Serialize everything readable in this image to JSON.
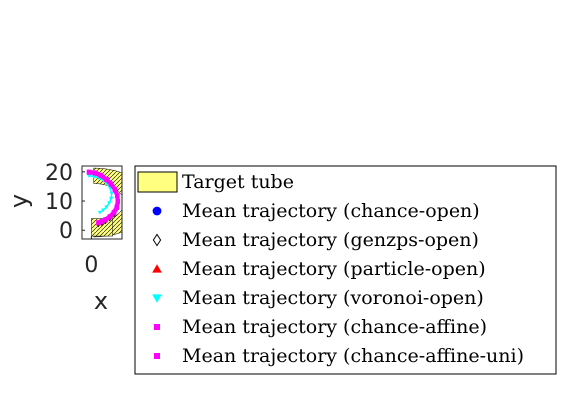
{
  "chart_data": {
    "type": "line",
    "title": "",
    "xlabel": "x",
    "ylabel": "y",
    "xlim": [
      -2,
      6.5
    ],
    "ylim": [
      -3,
      22
    ],
    "xticks": [
      0
    ],
    "yticks": [
      0,
      10,
      20
    ],
    "grid": false,
    "legend_placement": "right",
    "colors": {
      "target": "#ffff80",
      "chance_open": "#0000ff",
      "genzps_open": "#000000",
      "particle_open": "#ff0000",
      "voronoi_open": "#00ffff",
      "chance_affine": "#ff00ff",
      "chance_affine_uni": "#ff00ff"
    },
    "target_tube": {
      "name": "Target tube",
      "outer_radius": 11.8,
      "inner_radius": 6.5,
      "center": [
        0.5,
        9.5
      ],
      "bottom_box": {
        "x": [
          0,
          4.5
        ],
        "y": [
          -2,
          4
        ]
      }
    },
    "series": [
      {
        "name": "Mean trajectory (chance-open)",
        "marker": "circle",
        "color": "#0000ff",
        "x": [
          -0.5,
          0.8,
          2.0,
          3.2,
          4.2,
          5.0,
          5.5,
          5.6,
          5.4,
          4.8,
          3.9,
          3.0,
          2.2,
          1.5
        ],
        "y": [
          19.5,
          19.2,
          18.4,
          17.0,
          15.4,
          13.5,
          11.5,
          9.5,
          7.5,
          5.7,
          4.2,
          3.2,
          2.6,
          2.2
        ]
      },
      {
        "name": "Mean trajectory (genzps-open)",
        "marker": "diamond",
        "color": "#000000",
        "x": [
          -0.5,
          0.8,
          2.0,
          3.2,
          4.2,
          5.0,
          5.5,
          5.6,
          5.4,
          4.8,
          3.9,
          3.0,
          2.2,
          1.5
        ],
        "y": [
          19.5,
          19.2,
          18.4,
          17.0,
          15.4,
          13.5,
          11.5,
          9.5,
          7.5,
          5.7,
          4.2,
          3.2,
          2.6,
          2.2
        ]
      },
      {
        "name": "Mean trajectory (particle-open)",
        "marker": "triangle-up",
        "color": "#ff0000",
        "x": [
          -0.5,
          0.8,
          2.0,
          3.2,
          4.2,
          5.0,
          5.5,
          5.6,
          5.4,
          4.8,
          3.9,
          3.0,
          2.2,
          1.5
        ],
        "y": [
          19.5,
          19.2,
          18.4,
          17.0,
          15.4,
          13.5,
          11.5,
          9.5,
          7.5,
          5.7,
          4.2,
          3.2,
          2.6,
          2.2
        ]
      },
      {
        "name": "Mean trajectory (voronoi-open)",
        "marker": "triangle-down",
        "color": "#00ffff",
        "x": [
          -0.5,
          0.6,
          1.6,
          2.6,
          3.4,
          4.0,
          4.3,
          4.2,
          3.8,
          3.2,
          2.5,
          1.8
        ],
        "y": [
          18.6,
          18.4,
          17.9,
          17.0,
          15.8,
          14.3,
          12.6,
          10.9,
          9.4,
          8.0,
          6.9,
          6.1
        ]
      },
      {
        "name": "Mean trajectory (chance-affine)",
        "marker": "square",
        "color": "#ff00ff",
        "x": [
          -0.5,
          0.8,
          2.0,
          3.2,
          4.2,
          5.0,
          5.5,
          5.6,
          5.4,
          4.8,
          3.9,
          3.0,
          2.2,
          1.5
        ],
        "y": [
          19.8,
          19.5,
          18.7,
          17.3,
          15.7,
          13.8,
          11.8,
          9.8,
          7.8,
          6.0,
          4.5,
          3.5,
          2.9,
          2.5
        ]
      },
      {
        "name": "Mean trajectory (chance-affine-uni)",
        "marker": "square",
        "color": "#ff00ff",
        "x": [
          -0.5,
          0.8,
          2.0,
          3.2,
          4.2,
          5.0,
          5.5,
          5.6,
          5.4,
          4.8,
          3.9,
          3.0,
          2.2,
          1.5
        ],
        "y": [
          20.0,
          19.7,
          18.9,
          17.5,
          15.9,
          14.0,
          12.0,
          10.0,
          8.0,
          6.2,
          4.7,
          3.7,
          3.1,
          2.7
        ]
      }
    ]
  }
}
